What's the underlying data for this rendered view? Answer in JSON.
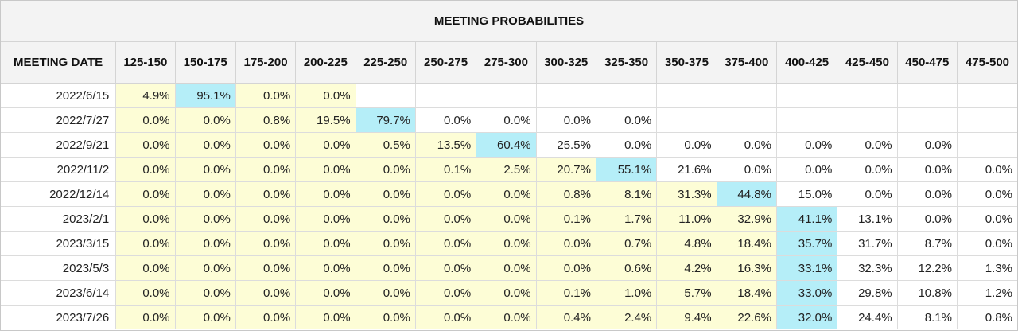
{
  "title": "MEETING PROBABILITIES",
  "date_header": "MEETING DATE",
  "columns": [
    "125-150",
    "150-175",
    "175-200",
    "200-225",
    "225-250",
    "250-275",
    "275-300",
    "300-325",
    "325-350",
    "350-375",
    "375-400",
    "400-425",
    "425-450",
    "450-475",
    "475-500"
  ],
  "rows": [
    {
      "date": "2022/6/15",
      "values": [
        "4.9%",
        "95.1%",
        "0.0%",
        "0.0%",
        "",
        "",
        "",
        "",
        "",
        "",
        "",
        "",
        "",
        "",
        ""
      ]
    },
    {
      "date": "2022/7/27",
      "values": [
        "0.0%",
        "0.0%",
        "0.8%",
        "19.5%",
        "79.7%",
        "0.0%",
        "0.0%",
        "0.0%",
        "0.0%",
        "",
        "",
        "",
        "",
        "",
        ""
      ]
    },
    {
      "date": "2022/9/21",
      "values": [
        "0.0%",
        "0.0%",
        "0.0%",
        "0.0%",
        "0.5%",
        "13.5%",
        "60.4%",
        "25.5%",
        "0.0%",
        "0.0%",
        "0.0%",
        "0.0%",
        "0.0%",
        "0.0%",
        ""
      ]
    },
    {
      "date": "2022/11/2",
      "values": [
        "0.0%",
        "0.0%",
        "0.0%",
        "0.0%",
        "0.0%",
        "0.1%",
        "2.5%",
        "20.7%",
        "55.1%",
        "21.6%",
        "0.0%",
        "0.0%",
        "0.0%",
        "0.0%",
        "0.0%"
      ]
    },
    {
      "date": "2022/12/14",
      "values": [
        "0.0%",
        "0.0%",
        "0.0%",
        "0.0%",
        "0.0%",
        "0.0%",
        "0.0%",
        "0.8%",
        "8.1%",
        "31.3%",
        "44.8%",
        "15.0%",
        "0.0%",
        "0.0%",
        "0.0%"
      ]
    },
    {
      "date": "2023/2/1",
      "values": [
        "0.0%",
        "0.0%",
        "0.0%",
        "0.0%",
        "0.0%",
        "0.0%",
        "0.0%",
        "0.1%",
        "1.7%",
        "11.0%",
        "32.9%",
        "41.1%",
        "13.1%",
        "0.0%",
        "0.0%"
      ]
    },
    {
      "date": "2023/3/15",
      "values": [
        "0.0%",
        "0.0%",
        "0.0%",
        "0.0%",
        "0.0%",
        "0.0%",
        "0.0%",
        "0.0%",
        "0.7%",
        "4.8%",
        "18.4%",
        "35.7%",
        "31.7%",
        "8.7%",
        "0.0%"
      ]
    },
    {
      "date": "2023/5/3",
      "values": [
        "0.0%",
        "0.0%",
        "0.0%",
        "0.0%",
        "0.0%",
        "0.0%",
        "0.0%",
        "0.0%",
        "0.6%",
        "4.2%",
        "16.3%",
        "33.1%",
        "32.3%",
        "12.2%",
        "1.3%"
      ]
    },
    {
      "date": "2023/6/14",
      "values": [
        "0.0%",
        "0.0%",
        "0.0%",
        "0.0%",
        "0.0%",
        "0.0%",
        "0.0%",
        "0.1%",
        "1.0%",
        "5.7%",
        "18.4%",
        "33.0%",
        "29.8%",
        "10.8%",
        "1.2%"
      ]
    },
    {
      "date": "2023/7/26",
      "values": [
        "0.0%",
        "0.0%",
        "0.0%",
        "0.0%",
        "0.0%",
        "0.0%",
        "0.0%",
        "0.4%",
        "2.4%",
        "9.4%",
        "22.6%",
        "32.0%",
        "24.4%",
        "8.1%",
        "0.8%"
      ]
    }
  ],
  "cell_shading": [
    "ybyy-----------",
    "yyyyb----------",
    "yyyyyyb--------",
    "yyyyyyyyb------",
    "yyyyyyyyyyb----",
    "yyyyyyyyyyyb---",
    "yyyyyyyyyyyb---",
    "yyyyyyyyyyyb---",
    "yyyyyyyyyyyb---",
    "yyyyyyyyyyyb---"
  ],
  "colors": {
    "header_bg": "#f3f3f3",
    "below_highlight_bg": "#fdfdd6",
    "highlight_bg": "#b5eef8",
    "above_highlight_bg": "#ffffff"
  }
}
